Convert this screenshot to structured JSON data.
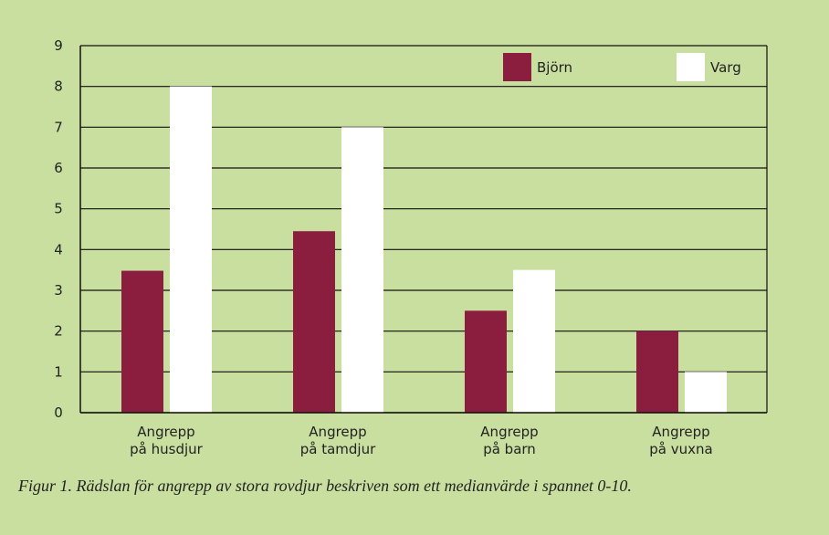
{
  "chart_data": {
    "type": "bar",
    "categories": [
      [
        "Angrepp",
        "på husdjur"
      ],
      [
        "Angrepp",
        "på tamdjur"
      ],
      [
        "Angrepp",
        "på barn"
      ],
      [
        "Angrepp",
        "på vuxna"
      ]
    ],
    "series": [
      {
        "name": "Björn",
        "color": "#8b1e3f",
        "values": [
          3.48,
          4.45,
          2.5,
          2.0
        ]
      },
      {
        "name": "Varg",
        "color": "#ffffff",
        "values": [
          8.0,
          7.0,
          3.5,
          1.0
        ]
      }
    ],
    "ylim": [
      0,
      9
    ],
    "yticks": [
      0,
      1,
      2,
      3,
      4,
      5,
      6,
      7,
      8,
      9
    ],
    "grid": true,
    "legend": "top-right",
    "caption": "Figur 1. Rädslan för angrepp av stora rovdjur beskriven som ett medianvärde i spannet 0-10."
  }
}
